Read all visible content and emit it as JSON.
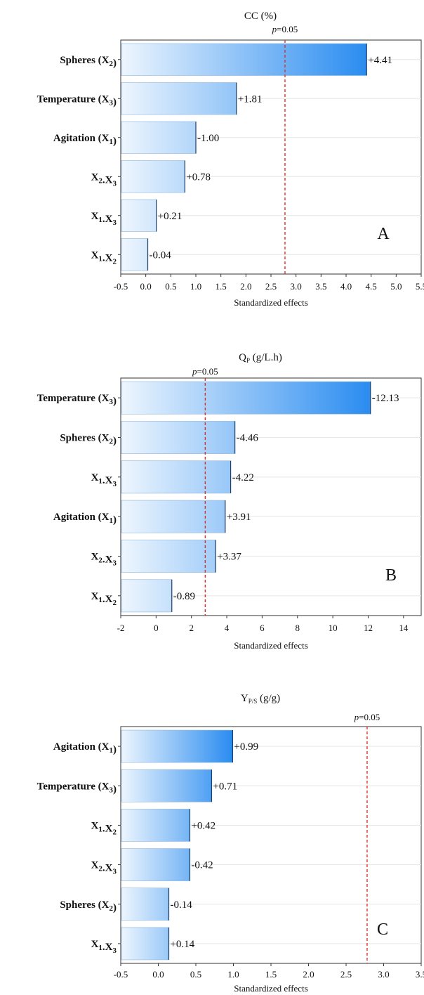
{
  "chart_data": [
    {
      "type": "bar",
      "orientation": "horizontal",
      "title": "CC (%)",
      "xlabel": "Standardized effects",
      "panel_label": "A",
      "threshold": {
        "label": "p=0.05",
        "value": 2.78
      },
      "xlim": [
        -0.5,
        5.5
      ],
      "xticks": [
        "-0.5",
        "0.0",
        "0.5",
        "1.0",
        "1.5",
        "2.0",
        "2.5",
        "3.0",
        "3.5",
        "4.0",
        "4.5",
        "5.0",
        "5.5"
      ],
      "bars": [
        {
          "label": "Spheres (X2)",
          "value": 4.41,
          "value_label": "+4.41"
        },
        {
          "label": "Temperature (X3)",
          "value": 1.81,
          "value_label": "+1.81"
        },
        {
          "label": "Agitation (X1)",
          "value": 1.0,
          "value_label": "-1.00"
        },
        {
          "label": "X2.X3",
          "value": 0.78,
          "value_label": "+0.78"
        },
        {
          "label": "X1.X3",
          "value": 0.21,
          "value_label": "+0.21"
        },
        {
          "label": "X1.X2",
          "value": 0.04,
          "value_label": "-0.04"
        }
      ]
    },
    {
      "type": "bar",
      "orientation": "horizontal",
      "title": "QP (g/L.h)",
      "xlabel": "Standardized effects",
      "panel_label": "B",
      "threshold": {
        "label": "p=0.05",
        "value": 2.78
      },
      "xlim": [
        -2,
        15
      ],
      "xticks": [
        "-2",
        "0",
        "2",
        "4",
        "6",
        "8",
        "10",
        "12",
        "14"
      ],
      "bars": [
        {
          "label": "Temperature (X3)",
          "value": 12.13,
          "value_label": "-12.13"
        },
        {
          "label": "Spheres (X2)",
          "value": 4.46,
          "value_label": "-4.46"
        },
        {
          "label": "X1.X3",
          "value": 4.22,
          "value_label": "-4.22"
        },
        {
          "label": "Agitation (X1)",
          "value": 3.91,
          "value_label": "+3.91"
        },
        {
          "label": "X2.X3",
          "value": 3.37,
          "value_label": "+3.37"
        },
        {
          "label": "X1.X2",
          "value": 0.89,
          "value_label": "-0.89"
        }
      ]
    },
    {
      "type": "bar",
      "orientation": "horizontal",
      "title": "YP/S (g/g)",
      "xlabel": "Standardized effects",
      "panel_label": "C",
      "threshold": {
        "label": "p=0.05",
        "value": 2.78
      },
      "xlim": [
        -0.5,
        3.5
      ],
      "xticks": [
        "-0.5",
        "0.0",
        "0.5",
        "1.0",
        "1.5",
        "2.0",
        "2.5",
        "3.0",
        "3.5"
      ],
      "bars": [
        {
          "label": "Agitation (X1)",
          "value": 0.99,
          "value_label": "+0.99"
        },
        {
          "label": "Temperature (X3)",
          "value": 0.71,
          "value_label": "+0.71"
        },
        {
          "label": "X1.X2",
          "value": 0.42,
          "value_label": "+0.42"
        },
        {
          "label": "X2.X3",
          "value": 0.42,
          "value_label": "-0.42"
        },
        {
          "label": "Spheres (X2)",
          "value": 0.14,
          "value_label": "-0.14"
        },
        {
          "label": "X1.X3",
          "value": 0.14,
          "value_label": "+0.14"
        }
      ]
    }
  ],
  "colors": {
    "bar_light": "#eef6fe",
    "bar_dark": "#2a8cf0",
    "threshold_line": "#e0302a",
    "grid": "#e6e6e6",
    "axis": "#333333"
  }
}
